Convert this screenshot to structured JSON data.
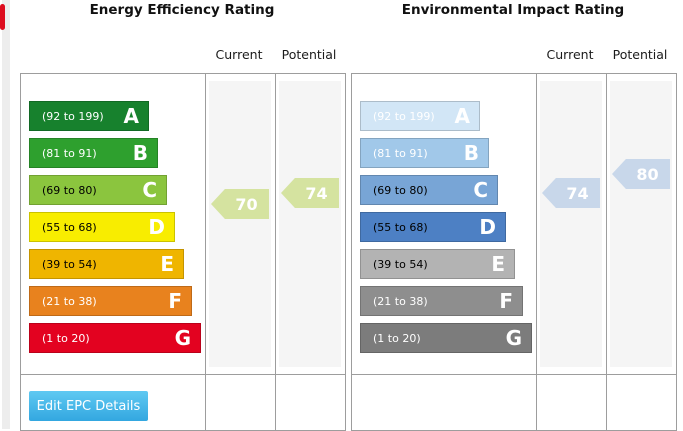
{
  "page": {
    "left_stripe_color": "#ededed",
    "edge_marker_color": "#dd0c1e",
    "table_border_color": "#9d9d9d"
  },
  "charts": [
    {
      "title": "Energy Efficiency Rating",
      "current_label": "Current",
      "potential_label": "Potential",
      "bands": [
        {
          "grade": "A",
          "range": "(92 to 199)",
          "color": "#17812d",
          "text_color": "#ffffff"
        },
        {
          "grade": "B",
          "range": "(81 to 91)",
          "color": "#2ea02e",
          "text_color": "#ffffff"
        },
        {
          "grade": "C",
          "range": "(69 to 80)",
          "color": "#8bc53e",
          "text_color": "#000000"
        },
        {
          "grade": "D",
          "range": "(55 to 68)",
          "color": "#f8ed00",
          "text_color": "#000000"
        },
        {
          "grade": "E",
          "range": "(39 to 54)",
          "color": "#efb500",
          "text_color": "#000000"
        },
        {
          "grade": "F",
          "range": "(21 to 38)",
          "color": "#e8821e",
          "text_color": "#ffffff"
        },
        {
          "grade": "G",
          "range": "(1 to 20)",
          "color": "#e30220",
          "text_color": "#ffffff"
        }
      ],
      "current": {
        "value": "70",
        "color": "#d5e3a0"
      },
      "potential": {
        "value": "74",
        "color": "#d5e3a0"
      },
      "button_label": "Edit EPC Details"
    },
    {
      "title": "Environmental Impact Rating",
      "current_label": "Current",
      "potential_label": "Potential",
      "bands": [
        {
          "grade": "A",
          "range": "(92 to 199)",
          "color": "#d2e6f6",
          "text_color": "#ffffff"
        },
        {
          "grade": "B",
          "range": "(81 to 91)",
          "color": "#a1c8e9",
          "text_color": "#ffffff"
        },
        {
          "grade": "C",
          "range": "(69 to 80)",
          "color": "#78a5d6",
          "text_color": "#000000"
        },
        {
          "grade": "D",
          "range": "(55 to 68)",
          "color": "#4d80c4",
          "text_color": "#000000"
        },
        {
          "grade": "E",
          "range": "(39 to 54)",
          "color": "#b3b3b3",
          "text_color": "#000000"
        },
        {
          "grade": "F",
          "range": "(21 to 38)",
          "color": "#8e8e8e",
          "text_color": "#ffffff"
        },
        {
          "grade": "G",
          "range": "(1 to 20)",
          "color": "#7c7c7c",
          "text_color": "#ffffff"
        }
      ],
      "current": {
        "value": "74",
        "color": "#c8d7ea"
      },
      "potential": {
        "value": "80",
        "color": "#c8d7ea"
      }
    }
  ]
}
